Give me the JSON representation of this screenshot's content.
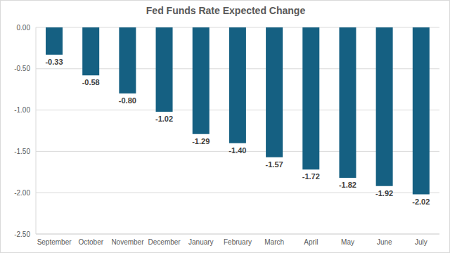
{
  "chart_data": {
    "type": "bar",
    "title": "Fed Funds Rate Expected Change",
    "categories": [
      "September",
      "October",
      "November",
      "December",
      "January",
      "February",
      "March",
      "April",
      "May",
      "June",
      "July"
    ],
    "values": [
      -0.33,
      -0.58,
      -0.8,
      -1.02,
      -1.29,
      -1.4,
      -1.57,
      -1.72,
      -1.82,
      -1.92,
      -2.02
    ],
    "value_labels": [
      "-0.33",
      "-0.58",
      "-0.80",
      "-1.02",
      "-1.29",
      "-1.40",
      "-1.57",
      "-1.72",
      "-1.82",
      "-1.92",
      "-2.02"
    ],
    "color": "#156082",
    "ylim": [
      -2.5,
      0
    ],
    "yticks": [
      {
        "value": -2.5,
        "label": "-2.50"
      },
      {
        "value": -2,
        "label": "-2.00"
      },
      {
        "value": -1.5,
        "label": "-1.50"
      },
      {
        "value": -1,
        "label": "-1.00"
      },
      {
        "value": -0.5,
        "label": "-0.50"
      },
      {
        "value": 0,
        "label": "0.00"
      }
    ],
    "grid": true,
    "data_labels": true
  }
}
